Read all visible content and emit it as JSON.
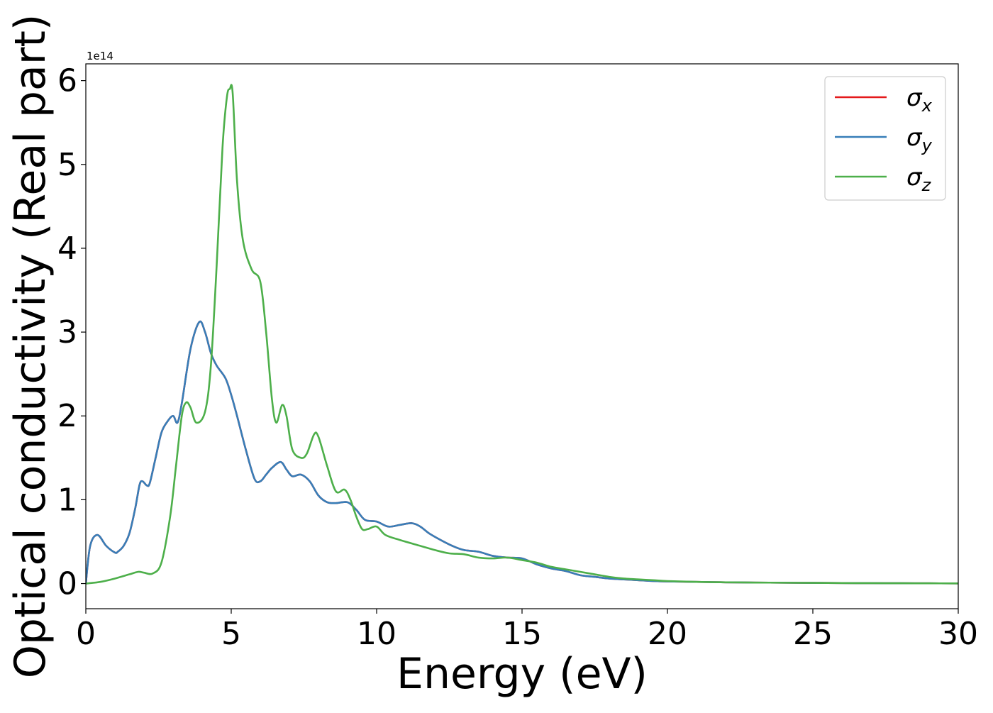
{
  "chart_data": {
    "type": "line",
    "title": "",
    "xlabel": "Energy (eV)",
    "ylabel": "Optical conductivity (Real part)",
    "y_offset_label": "1e14",
    "xlim": [
      0,
      30
    ],
    "ylim": [
      -0.3,
      6.2
    ],
    "xticks": [
      0,
      5,
      10,
      15,
      20,
      25,
      30
    ],
    "yticks": [
      0,
      1,
      2,
      3,
      4,
      5,
      6
    ],
    "xtick_labels": [
      "0",
      "5",
      "10",
      "15",
      "20",
      "25",
      "30"
    ],
    "ytick_labels": [
      "0",
      "1",
      "2",
      "3",
      "4",
      "5",
      "6"
    ],
    "grid": false,
    "legend_position": "top-right",
    "series": [
      {
        "name": "σx",
        "symbol": "σ",
        "subscript": "x",
        "color": "#e41a1c",
        "x": [
          0,
          0.15,
          0.4,
          0.7,
          1.0,
          1.1,
          1.3,
          1.5,
          1.7,
          1.85,
          1.95,
          2.1,
          2.2,
          2.4,
          2.6,
          2.8,
          3.0,
          3.15,
          3.3,
          3.6,
          3.9,
          4.1,
          4.3,
          4.5,
          4.8,
          5.0,
          5.2,
          5.5,
          5.8,
          6.0,
          6.2,
          6.4,
          6.7,
          6.9,
          7.1,
          7.4,
          7.7,
          8.0,
          8.3,
          8.6,
          9.0,
          9.3,
          9.6,
          10.0,
          10.4,
          10.8,
          11.2,
          11.5,
          11.8,
          12.2,
          12.6,
          13.0,
          13.5,
          14.0,
          14.5,
          15.0,
          15.5,
          16.0,
          16.5,
          17.0,
          17.5,
          18.0,
          18.5,
          19.0,
          19.5,
          20.0,
          21.0,
          22.0,
          23.0,
          24.0,
          25.0,
          26.0,
          27.0,
          28.0,
          29.0,
          30.0
        ],
        "y": [
          0,
          0.45,
          0.58,
          0.45,
          0.37,
          0.38,
          0.45,
          0.6,
          0.9,
          1.18,
          1.22,
          1.17,
          1.2,
          1.5,
          1.8,
          1.93,
          2.0,
          1.92,
          2.15,
          2.8,
          3.12,
          3.0,
          2.75,
          2.6,
          2.45,
          2.25,
          2.0,
          1.6,
          1.25,
          1.22,
          1.3,
          1.38,
          1.45,
          1.36,
          1.28,
          1.3,
          1.22,
          1.05,
          0.97,
          0.96,
          0.97,
          0.88,
          0.76,
          0.74,
          0.68,
          0.7,
          0.72,
          0.68,
          0.6,
          0.52,
          0.45,
          0.4,
          0.38,
          0.33,
          0.31,
          0.3,
          0.23,
          0.18,
          0.15,
          0.1,
          0.08,
          0.06,
          0.05,
          0.04,
          0.03,
          0.025,
          0.02,
          0.015,
          0.012,
          0.01,
          0.008,
          0.006,
          0.005,
          0.004,
          0.003,
          0.002
        ]
      },
      {
        "name": "σy",
        "symbol": "σ",
        "subscript": "y",
        "color": "#377eb8",
        "x": [
          0,
          0.15,
          0.4,
          0.7,
          1.0,
          1.1,
          1.3,
          1.5,
          1.7,
          1.85,
          1.95,
          2.1,
          2.2,
          2.4,
          2.6,
          2.8,
          3.0,
          3.15,
          3.3,
          3.6,
          3.9,
          4.1,
          4.3,
          4.5,
          4.8,
          5.0,
          5.2,
          5.5,
          5.8,
          6.0,
          6.2,
          6.4,
          6.7,
          6.9,
          7.1,
          7.4,
          7.7,
          8.0,
          8.3,
          8.6,
          9.0,
          9.3,
          9.6,
          10.0,
          10.4,
          10.8,
          11.2,
          11.5,
          11.8,
          12.2,
          12.6,
          13.0,
          13.5,
          14.0,
          14.5,
          15.0,
          15.5,
          16.0,
          16.5,
          17.0,
          17.5,
          18.0,
          18.5,
          19.0,
          19.5,
          20.0,
          21.0,
          22.0,
          23.0,
          24.0,
          25.0,
          26.0,
          27.0,
          28.0,
          29.0,
          30.0
        ],
        "y": [
          0,
          0.45,
          0.58,
          0.45,
          0.37,
          0.38,
          0.45,
          0.6,
          0.9,
          1.18,
          1.22,
          1.17,
          1.2,
          1.5,
          1.8,
          1.93,
          2.0,
          1.92,
          2.15,
          2.8,
          3.12,
          3.0,
          2.75,
          2.6,
          2.45,
          2.25,
          2.0,
          1.6,
          1.25,
          1.22,
          1.3,
          1.38,
          1.45,
          1.36,
          1.28,
          1.3,
          1.22,
          1.05,
          0.97,
          0.96,
          0.97,
          0.88,
          0.76,
          0.74,
          0.68,
          0.7,
          0.72,
          0.68,
          0.6,
          0.52,
          0.45,
          0.4,
          0.38,
          0.33,
          0.31,
          0.3,
          0.23,
          0.18,
          0.15,
          0.1,
          0.08,
          0.06,
          0.05,
          0.04,
          0.03,
          0.025,
          0.02,
          0.015,
          0.012,
          0.01,
          0.008,
          0.006,
          0.005,
          0.004,
          0.003,
          0.002
        ]
      },
      {
        "name": "σz",
        "symbol": "σ",
        "subscript": "z",
        "color": "#4daf4a",
        "x": [
          0,
          0.5,
          1.0,
          1.5,
          1.8,
          2.0,
          2.3,
          2.6,
          2.9,
          3.1,
          3.3,
          3.45,
          3.6,
          3.8,
          4.1,
          4.3,
          4.5,
          4.7,
          4.85,
          4.95,
          5.05,
          5.2,
          5.4,
          5.7,
          6.0,
          6.2,
          6.4,
          6.55,
          6.75,
          6.9,
          7.1,
          7.4,
          7.6,
          7.85,
          8.0,
          8.3,
          8.6,
          8.9,
          9.1,
          9.3,
          9.5,
          9.7,
          10.0,
          10.3,
          10.8,
          11.5,
          12.0,
          12.5,
          13.0,
          13.5,
          14.0,
          14.5,
          15.0,
          15.5,
          16.0,
          16.5,
          17.0,
          17.5,
          18.0,
          18.5,
          19.0,
          19.5,
          20.0,
          21.0,
          22.0,
          23.0,
          24.0,
          25.0,
          26.0,
          27.0,
          28.0,
          29.0,
          30.0
        ],
        "y": [
          0,
          0.02,
          0.06,
          0.11,
          0.14,
          0.13,
          0.12,
          0.25,
          0.8,
          1.4,
          2.0,
          2.16,
          2.1,
          1.92,
          2.05,
          2.6,
          3.8,
          5.2,
          5.8,
          5.9,
          5.85,
          4.8,
          4.1,
          3.75,
          3.6,
          3.0,
          2.2,
          1.92,
          2.13,
          2.0,
          1.6,
          1.5,
          1.55,
          1.78,
          1.75,
          1.4,
          1.1,
          1.12,
          1.0,
          0.8,
          0.65,
          0.65,
          0.68,
          0.58,
          0.52,
          0.45,
          0.4,
          0.36,
          0.35,
          0.31,
          0.3,
          0.31,
          0.28,
          0.25,
          0.2,
          0.17,
          0.14,
          0.11,
          0.08,
          0.06,
          0.05,
          0.04,
          0.03,
          0.02,
          0.015,
          0.012,
          0.01,
          0.008,
          0.006,
          0.005,
          0.004,
          0.003,
          0.002
        ]
      }
    ]
  }
}
